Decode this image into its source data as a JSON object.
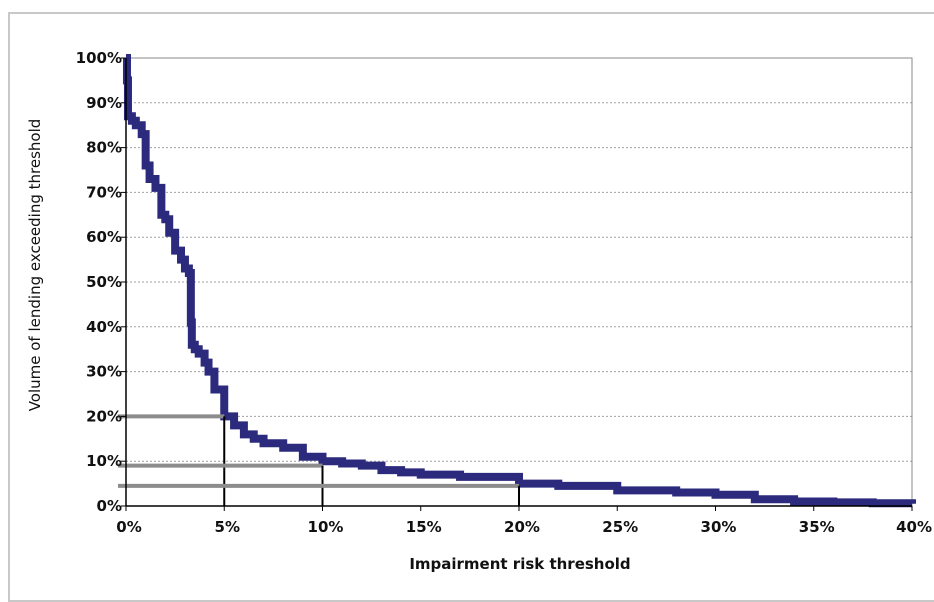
{
  "chart_data": {
    "type": "line",
    "title": "",
    "xlabel": "Impairment risk threshold",
    "ylabel": "Volume of lending exceeding threshold",
    "xlim": [
      0,
      40
    ],
    "ylim": [
      0,
      100
    ],
    "grid": true,
    "legend": "none",
    "x_ticks": [
      "0%",
      "5%",
      "10%",
      "15%",
      "20%",
      "25%",
      "30%",
      "35%",
      "40%"
    ],
    "y_ticks": [
      "0%",
      "10%",
      "20%",
      "30%",
      "40%",
      "50%",
      "60%",
      "70%",
      "80%",
      "90%",
      "100%"
    ],
    "series": [
      {
        "color": "#2b2a7d",
        "x": [
          0,
          0.05,
          0.1,
          0.3,
          0.5,
          0.8,
          1.0,
          1.2,
          1.5,
          1.8,
          2.0,
          2.2,
          2.5,
          2.8,
          3.0,
          3.2,
          3.3,
          3.35,
          3.5,
          3.7,
          4.0,
          4.2,
          4.5,
          5.0,
          5.5,
          6.0,
          6.5,
          7.0,
          8.0,
          9.0,
          10.0,
          11.0,
          12.0,
          13.0,
          14.0,
          15.0,
          17.0,
          20.0,
          22.0,
          25.0,
          28.0,
          30.0,
          32.0,
          34.0,
          36.0,
          38.0,
          40.0
        ],
        "y": [
          100,
          95,
          87,
          86,
          85,
          83,
          76,
          73,
          71,
          65,
          64,
          61,
          57,
          55,
          53,
          52,
          41,
          36,
          35,
          34,
          32,
          30,
          26,
          20,
          18,
          16,
          15,
          14,
          13,
          11,
          10,
          9.5,
          9,
          8,
          7.5,
          7,
          6.5,
          5,
          4.5,
          3.5,
          3,
          2.5,
          1.5,
          1,
          0.8,
          0.6,
          0.5
        ]
      }
    ],
    "reference_lines": [
      {
        "x": 5,
        "y": 20
      },
      {
        "x": 10,
        "y": 9
      },
      {
        "x": 20,
        "y": 4.5
      }
    ]
  }
}
